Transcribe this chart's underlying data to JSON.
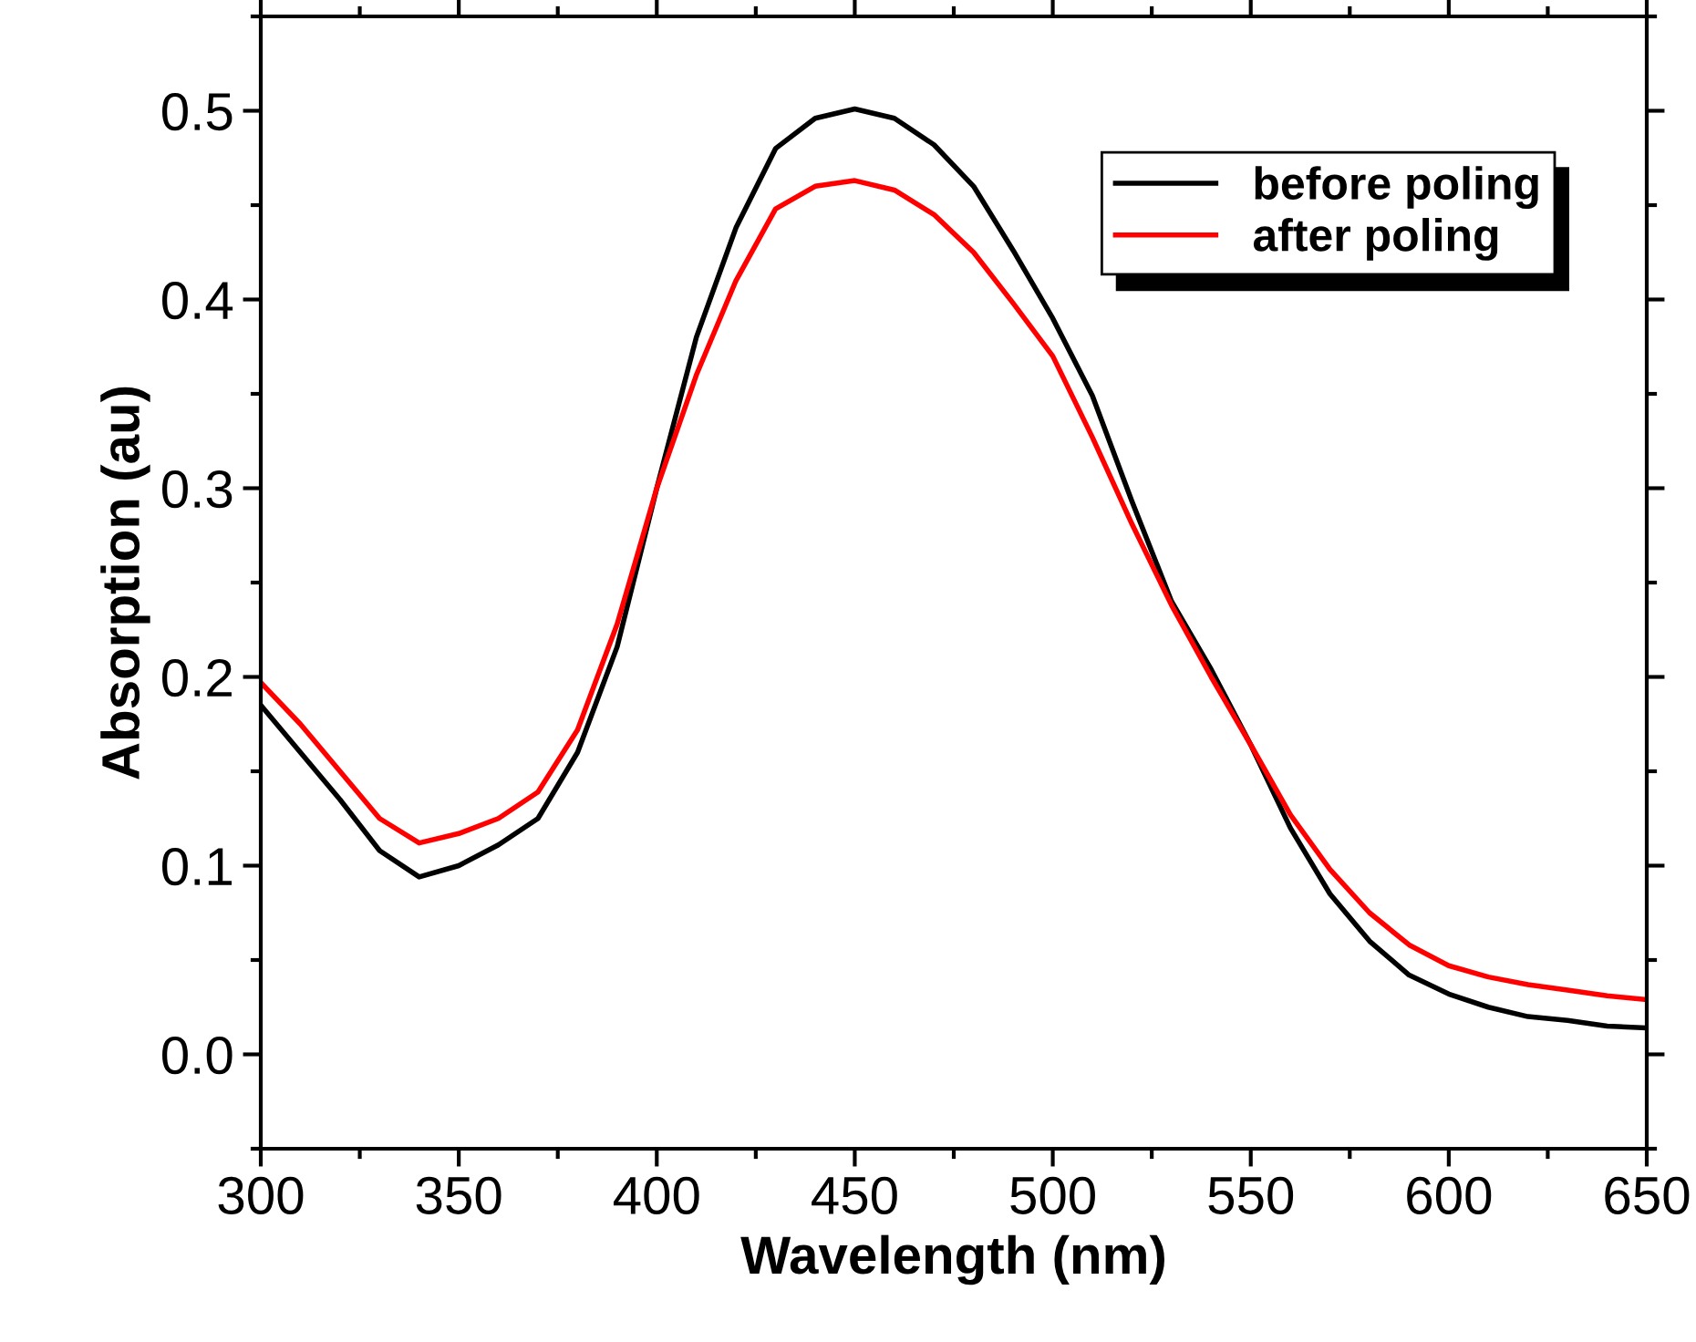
{
  "chart_data": {
    "type": "line",
    "xlabel": "Wavelength (nm)",
    "ylabel": "Absorption (au)",
    "x": [
      300,
      310,
      320,
      330,
      340,
      350,
      360,
      370,
      380,
      390,
      400,
      410,
      420,
      430,
      440,
      450,
      460,
      470,
      480,
      490,
      500,
      510,
      520,
      530,
      540,
      550,
      560,
      570,
      580,
      590,
      600,
      610,
      620,
      630,
      640,
      650
    ],
    "series": [
      {
        "name": "before poling",
        "color": "#000000",
        "values": [
          0.185,
          0.16,
          0.135,
          0.108,
          0.094,
          0.1,
          0.111,
          0.125,
          0.16,
          0.216,
          0.3,
          0.38,
          0.438,
          0.48,
          0.496,
          0.501,
          0.496,
          0.482,
          0.46,
          0.426,
          0.39,
          0.349,
          0.293,
          0.24,
          0.204,
          0.164,
          0.12,
          0.085,
          0.06,
          0.042,
          0.032,
          0.025,
          0.02,
          0.018,
          0.015,
          0.014
        ]
      },
      {
        "name": "after poling",
        "color": "#ff0000",
        "values": [
          0.197,
          0.175,
          0.15,
          0.125,
          0.112,
          0.117,
          0.125,
          0.139,
          0.172,
          0.228,
          0.3,
          0.36,
          0.41,
          0.448,
          0.46,
          0.463,
          0.458,
          0.445,
          0.425,
          0.398,
          0.37,
          0.327,
          0.281,
          0.238,
          0.2,
          0.164,
          0.127,
          0.098,
          0.075,
          0.058,
          0.047,
          0.041,
          0.037,
          0.034,
          0.031,
          0.029
        ]
      }
    ],
    "xlim": [
      300,
      650
    ],
    "xticks": [
      300,
      350,
      400,
      450,
      500,
      550,
      600,
      650
    ],
    "ylim": [
      -0.05,
      0.55
    ],
    "yticks": [
      {
        "value": 0,
        "label": "0.0"
      },
      0.1,
      0.2,
      0.3,
      0.4,
      0.5
    ],
    "grid": false,
    "legend": "top right",
    "marker": "none",
    "line_style": "solid"
  }
}
